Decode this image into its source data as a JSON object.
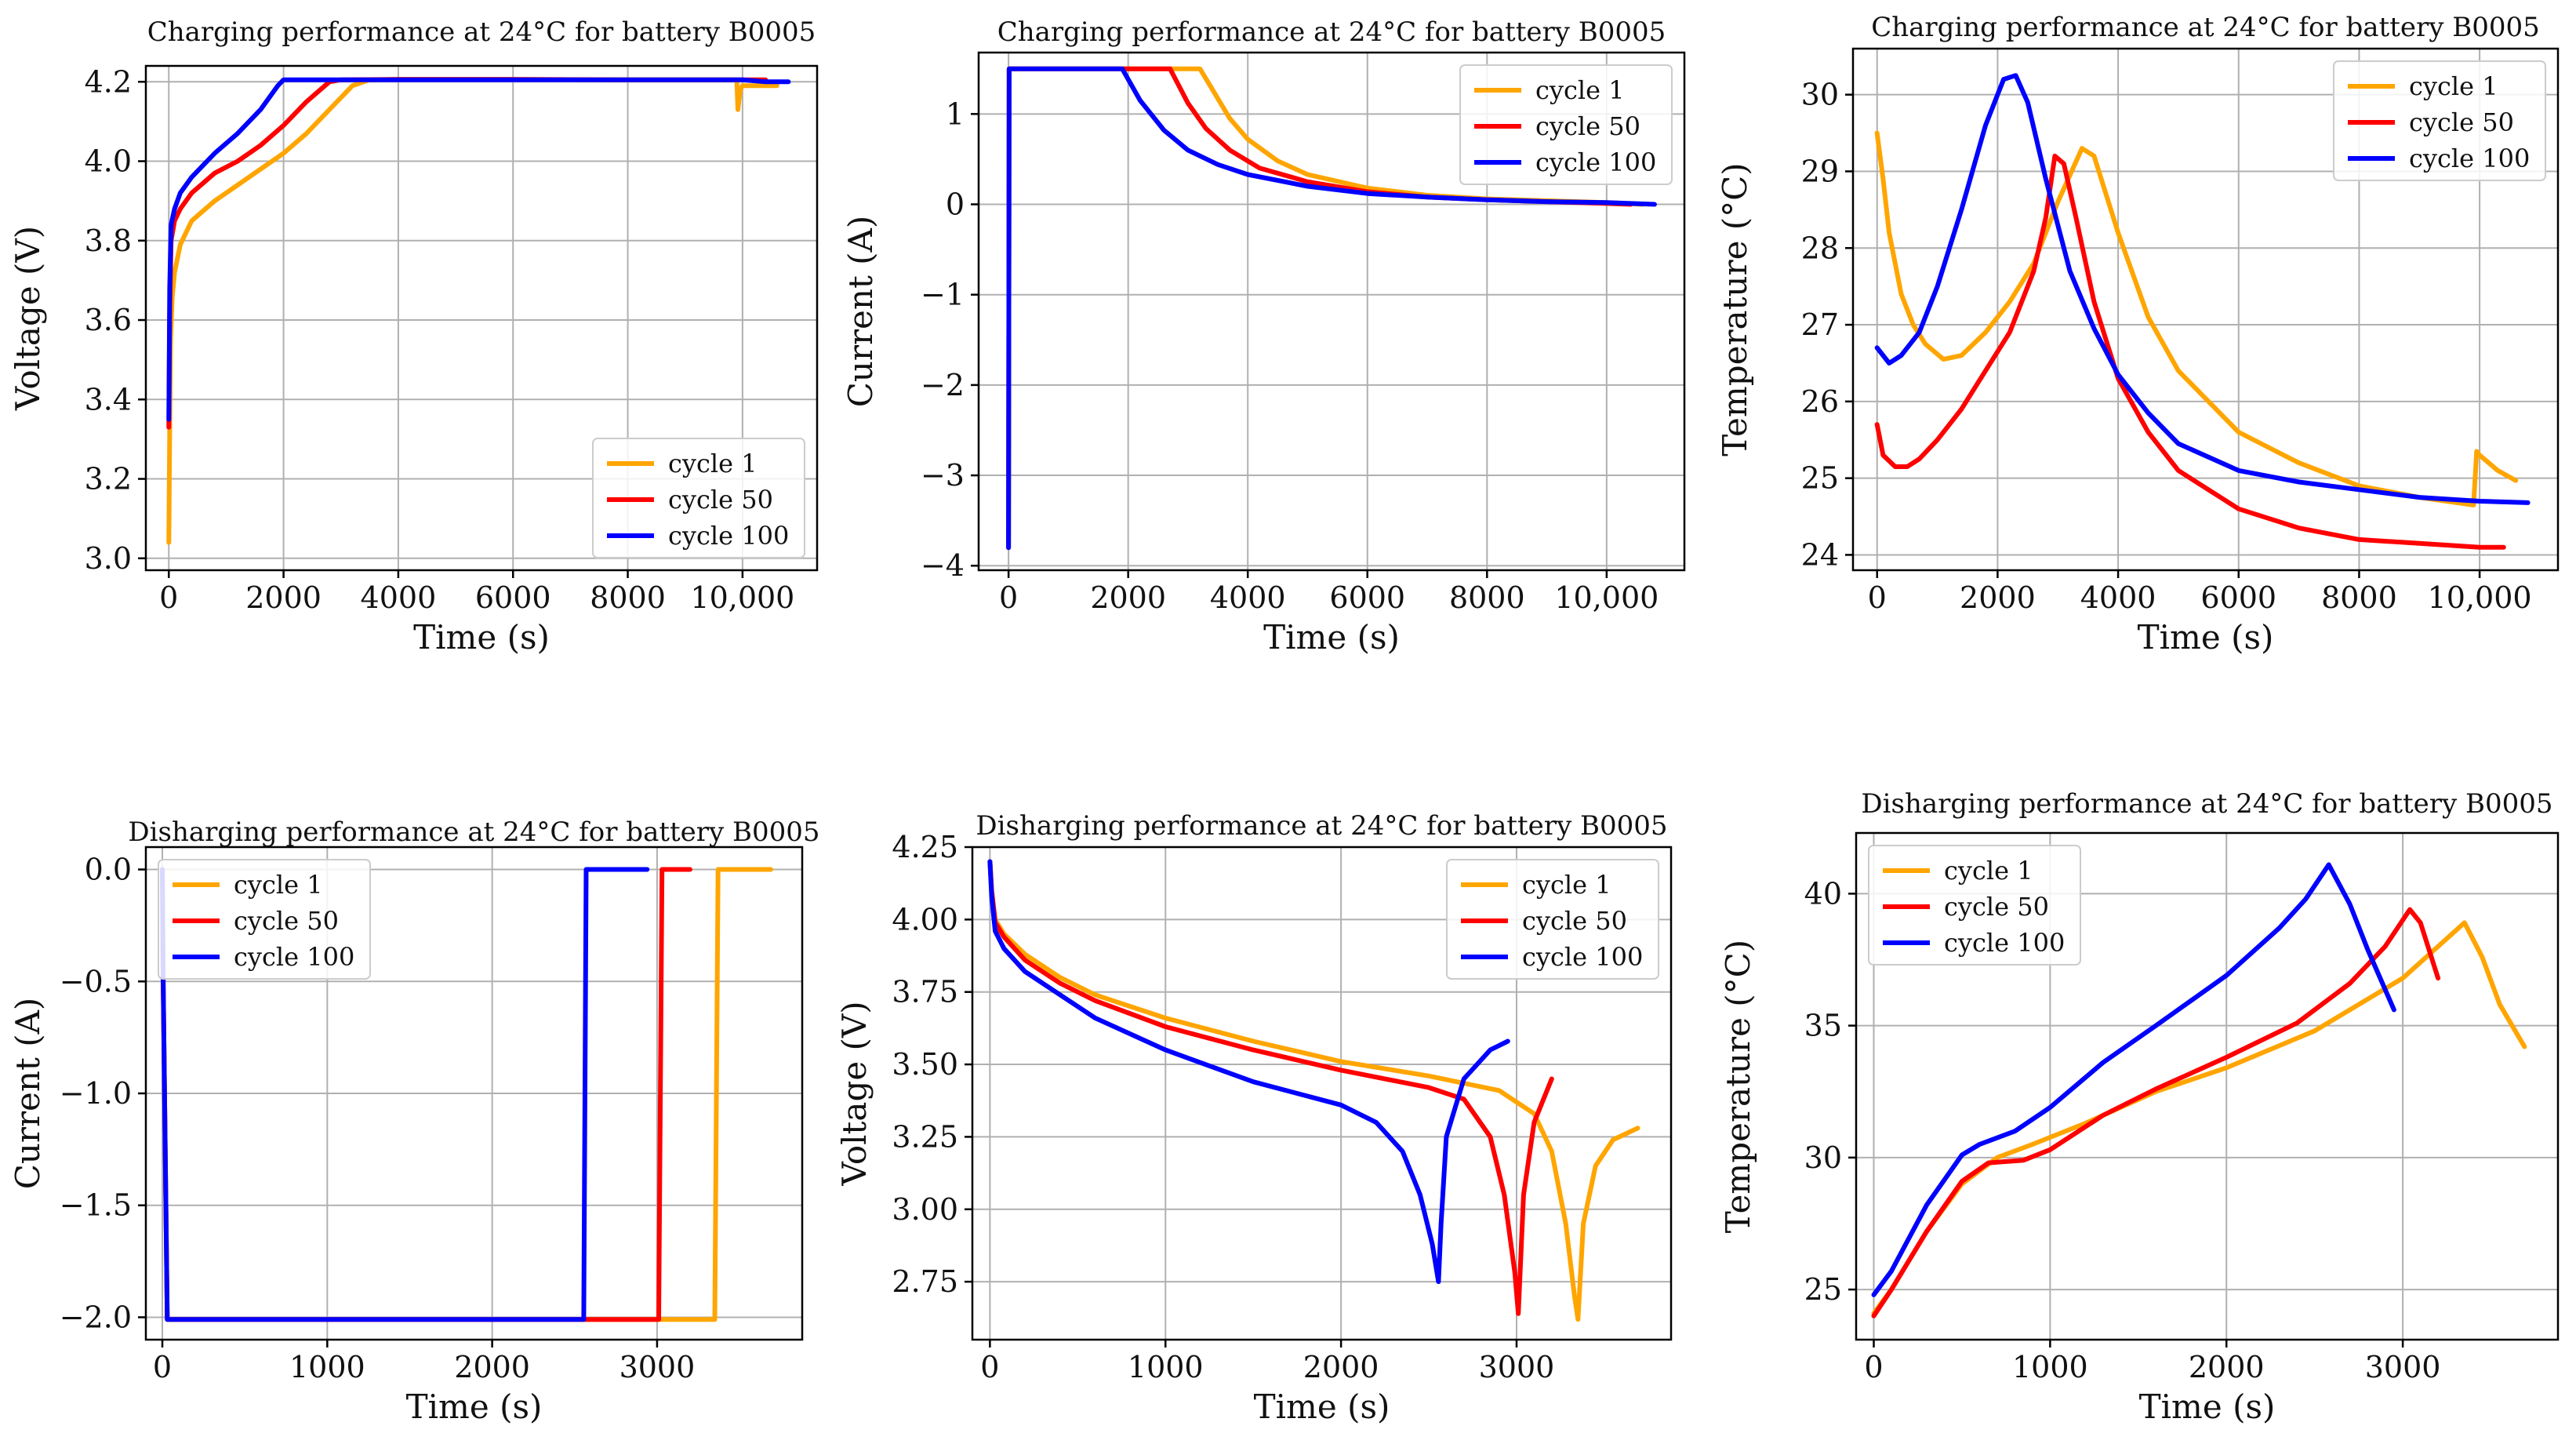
{
  "colors": {
    "cycle1": "#FFA500",
    "cycle50": "#FF0000",
    "cycle100": "#0000FF"
  },
  "chart_data": [
    {
      "type": "line",
      "title": "Charging performance at 24°C for battery B0005",
      "xlabel": "Time (s)",
      "ylabel": "Voltage (V)",
      "xlim": [
        -400,
        11300
      ],
      "ylim": [
        2.97,
        4.24
      ],
      "xticks": [
        0,
        2000,
        4000,
        6000,
        8000,
        10000
      ],
      "xtick_labels": [
        "0",
        "2000",
        "4000",
        "6000",
        "8000",
        "10,000"
      ],
      "yticks": [
        3.0,
        3.2,
        3.4,
        3.6,
        3.8,
        4.0,
        4.2
      ],
      "ytick_labels": [
        "3.0",
        "3.2",
        "3.4",
        "3.6",
        "3.8",
        "4.0",
        "4.2"
      ],
      "grid": true,
      "legend": "bottom-right",
      "series": [
        {
          "name": "cycle 1",
          "color": "#FFA500",
          "x": [
            0,
            15,
            30,
            60,
            100,
            200,
            400,
            800,
            1200,
            1600,
            2000,
            2400,
            2800,
            3200,
            3500,
            4000,
            6000,
            8000,
            9850,
            9900,
            9920,
            9960,
            10000,
            10600
          ],
          "y": [
            3.04,
            3.32,
            3.55,
            3.66,
            3.72,
            3.79,
            3.85,
            3.9,
            3.94,
            3.98,
            4.02,
            4.07,
            4.13,
            4.19,
            4.205,
            4.206,
            4.206,
            4.205,
            4.205,
            4.205,
            4.13,
            4.18,
            4.19,
            4.19
          ]
        },
        {
          "name": "cycle 50",
          "color": "#FF0000",
          "x": [
            0,
            15,
            40,
            100,
            200,
            400,
            800,
            1200,
            1600,
            2000,
            2400,
            2800,
            3000,
            4000,
            6000,
            8000,
            10000,
            10400
          ],
          "y": [
            3.33,
            3.62,
            3.8,
            3.85,
            3.88,
            3.92,
            3.97,
            4.0,
            4.04,
            4.09,
            4.15,
            4.2,
            4.205,
            4.206,
            4.206,
            4.205,
            4.205,
            4.205
          ]
        },
        {
          "name": "cycle 100",
          "color": "#0000FF",
          "x": [
            0,
            15,
            40,
            100,
            200,
            400,
            800,
            1200,
            1600,
            1900,
            2000,
            4000,
            6000,
            8000,
            10000,
            10400,
            10800
          ],
          "y": [
            3.35,
            3.68,
            3.84,
            3.88,
            3.92,
            3.96,
            4.02,
            4.07,
            4.13,
            4.19,
            4.205,
            4.205,
            4.205,
            4.205,
            4.205,
            4.2,
            4.2
          ]
        }
      ]
    },
    {
      "type": "line",
      "title": "Charging performance at 24°C for battery B0005",
      "xlabel": "Time (s)",
      "ylabel": "Current (A)",
      "xlim": [
        -500,
        11300
      ],
      "ylim": [
        -4.05,
        1.68
      ],
      "xticks": [
        0,
        2000,
        4000,
        6000,
        8000,
        10000
      ],
      "xtick_labels": [
        "0",
        "2000",
        "4000",
        "6000",
        "8000",
        "10,000"
      ],
      "yticks": [
        -4,
        -3,
        -2,
        -1,
        0,
        1
      ],
      "ytick_labels": [
        "−4",
        "−3",
        "−2",
        "−1",
        "0",
        "1"
      ],
      "grid": true,
      "legend": "top-right",
      "series": [
        {
          "name": "cycle 1",
          "color": "#FFA500",
          "x": [
            0,
            10,
            20,
            3200,
            3400,
            3700,
            4000,
            4500,
            5000,
            6000,
            7000,
            8000,
            9000,
            10000,
            10600
          ],
          "y": [
            -3.8,
            1.5,
            1.5,
            1.5,
            1.28,
            0.95,
            0.72,
            0.48,
            0.33,
            0.18,
            0.1,
            0.06,
            0.04,
            0.02,
            0.0
          ]
        },
        {
          "name": "cycle 50",
          "color": "#FF0000",
          "x": [
            0,
            10,
            20,
            2700,
            3000,
            3300,
            3700,
            4200,
            5000,
            6000,
            7000,
            8000,
            9000,
            10000,
            10400
          ],
          "y": [
            -3.8,
            1.5,
            1.5,
            1.5,
            1.12,
            0.84,
            0.6,
            0.4,
            0.25,
            0.14,
            0.08,
            0.05,
            0.03,
            0.01,
            0.0
          ]
        },
        {
          "name": "cycle 100",
          "color": "#0000FF",
          "x": [
            0,
            10,
            20,
            1900,
            2200,
            2600,
            3000,
            3500,
            4000,
            5000,
            6000,
            7000,
            8000,
            9000,
            10000,
            10800
          ],
          "y": [
            -3.8,
            1.5,
            1.5,
            1.5,
            1.15,
            0.82,
            0.6,
            0.44,
            0.33,
            0.2,
            0.12,
            0.08,
            0.05,
            0.03,
            0.02,
            0.0
          ]
        }
      ]
    },
    {
      "type": "line",
      "title": "Charging performance at 24°C for battery B0005",
      "xlabel": "Time (s)",
      "ylabel": "Temperature (°C)",
      "xlim": [
        -400,
        11300
      ],
      "ylim": [
        23.8,
        30.6
      ],
      "xticks": [
        0,
        2000,
        4000,
        6000,
        8000,
        10000
      ],
      "xtick_labels": [
        "0",
        "2000",
        "4000",
        "6000",
        "8000",
        "10,000"
      ],
      "yticks": [
        24,
        25,
        26,
        27,
        28,
        29,
        30
      ],
      "ytick_labels": [
        "24",
        "25",
        "26",
        "27",
        "28",
        "29",
        "30"
      ],
      "grid": true,
      "legend": "top-right",
      "series": [
        {
          "name": "cycle 1",
          "color": "#FFA500",
          "x": [
            0,
            100,
            200,
            400,
            600,
            800,
            1100,
            1400,
            1800,
            2200,
            2600,
            3000,
            3400,
            3600,
            4000,
            4500,
            5000,
            6000,
            7000,
            8000,
            9000,
            9900,
            9950,
            10000,
            10300,
            10600
          ],
          "y": [
            29.5,
            28.9,
            28.2,
            27.4,
            27.0,
            26.75,
            26.55,
            26.6,
            26.9,
            27.3,
            27.8,
            28.6,
            29.3,
            29.2,
            28.2,
            27.1,
            26.4,
            25.6,
            25.2,
            24.9,
            24.75,
            24.65,
            25.35,
            25.3,
            25.1,
            24.97
          ]
        },
        {
          "name": "cycle 50",
          "color": "#FF0000",
          "x": [
            0,
            100,
            300,
            500,
            700,
            1000,
            1400,
            1800,
            2200,
            2600,
            2800,
            2950,
            3100,
            3300,
            3600,
            4000,
            4500,
            5000,
            6000,
            7000,
            8000,
            9000,
            10000,
            10400
          ],
          "y": [
            25.7,
            25.3,
            25.15,
            25.15,
            25.25,
            25.5,
            25.9,
            26.4,
            26.9,
            27.7,
            28.4,
            29.2,
            29.1,
            28.4,
            27.3,
            26.3,
            25.6,
            25.1,
            24.6,
            24.35,
            24.2,
            24.15,
            24.1,
            24.1
          ]
        },
        {
          "name": "cycle 100",
          "color": "#0000FF",
          "x": [
            0,
            200,
            400,
            700,
            1000,
            1400,
            1800,
            2100,
            2300,
            2500,
            2800,
            3200,
            3600,
            4000,
            4500,
            5000,
            6000,
            7000,
            8000,
            9000,
            10000,
            10800
          ],
          "y": [
            26.7,
            26.5,
            26.6,
            26.9,
            27.5,
            28.5,
            29.6,
            30.2,
            30.25,
            29.9,
            28.9,
            27.7,
            26.95,
            26.35,
            25.85,
            25.45,
            25.1,
            24.95,
            24.85,
            24.75,
            24.7,
            24.68
          ]
        }
      ]
    },
    {
      "type": "line",
      "title": "Disharging performance at 24°C for battery B0005",
      "xlabel": "Time (s)",
      "ylabel": "Current (A)",
      "xlim": [
        -100,
        3880
      ],
      "ylim": [
        -2.1,
        0.1
      ],
      "xticks": [
        0,
        1000,
        2000,
        3000
      ],
      "xtick_labels": [
        "0",
        "1000",
        "2000",
        "3000"
      ],
      "yticks": [
        -2.0,
        -1.5,
        -1.0,
        -0.5,
        0.0
      ],
      "ytick_labels": [
        "−2.0",
        "−1.5",
        "−1.0",
        "−0.5",
        "0.0"
      ],
      "grid": true,
      "legend": "top-left",
      "series": [
        {
          "name": "cycle 1",
          "color": "#FFA500",
          "x": [
            0,
            5,
            30,
            3350,
            3370,
            3690
          ],
          "y": [
            0.0,
            -0.5,
            -2.01,
            -2.01,
            0.0,
            0.0
          ]
        },
        {
          "name": "cycle 50",
          "color": "#FF0000",
          "x": [
            0,
            5,
            30,
            3010,
            3030,
            3200
          ],
          "y": [
            0.0,
            -0.5,
            -2.01,
            -2.01,
            0.0,
            0.0
          ]
        },
        {
          "name": "cycle 100",
          "color": "#0000FF",
          "x": [
            0,
            5,
            30,
            2555,
            2570,
            2940
          ],
          "y": [
            0.0,
            -0.5,
            -2.01,
            -2.01,
            0.0,
            0.0
          ]
        }
      ]
    },
    {
      "type": "line",
      "title": "Disharging performance at 24°C for battery B0005",
      "xlabel": "Time (s)",
      "ylabel": "Voltage (V)",
      "xlim": [
        -100,
        3880
      ],
      "ylim": [
        2.55,
        4.25
      ],
      "xticks": [
        0,
        1000,
        2000,
        3000
      ],
      "xtick_labels": [
        "0",
        "1000",
        "2000",
        "3000"
      ],
      "yticks": [
        2.75,
        3.0,
        3.25,
        3.5,
        3.75,
        4.0,
        4.25
      ],
      "ytick_labels": [
        "2.75",
        "3.00",
        "3.25",
        "3.50",
        "3.75",
        "4.00",
        "4.25"
      ],
      "grid": true,
      "legend": "top-right",
      "series": [
        {
          "name": "cycle 1",
          "color": "#FFA500",
          "x": [
            0,
            10,
            30,
            80,
            200,
            400,
            600,
            1000,
            1500,
            2000,
            2500,
            2900,
            3100,
            3200,
            3280,
            3330,
            3350,
            3380,
            3450,
            3550,
            3690
          ],
          "y": [
            4.2,
            4.1,
            4.0,
            3.95,
            3.88,
            3.8,
            3.74,
            3.66,
            3.58,
            3.51,
            3.46,
            3.41,
            3.33,
            3.2,
            2.95,
            2.7,
            2.62,
            2.95,
            3.15,
            3.24,
            3.28
          ]
        },
        {
          "name": "cycle 50",
          "color": "#FF0000",
          "x": [
            0,
            10,
            30,
            80,
            200,
            400,
            600,
            1000,
            1500,
            2000,
            2500,
            2700,
            2850,
            2930,
            2990,
            3010,
            3040,
            3100,
            3200
          ],
          "y": [
            4.2,
            4.1,
            3.99,
            3.94,
            3.86,
            3.78,
            3.72,
            3.63,
            3.55,
            3.48,
            3.42,
            3.38,
            3.25,
            3.05,
            2.78,
            2.64,
            3.05,
            3.3,
            3.45
          ]
        },
        {
          "name": "cycle 100",
          "color": "#0000FF",
          "x": [
            0,
            10,
            30,
            80,
            200,
            400,
            600,
            1000,
            1500,
            2000,
            2200,
            2350,
            2450,
            2520,
            2555,
            2570,
            2600,
            2700,
            2850,
            2950
          ],
          "y": [
            4.2,
            4.08,
            3.96,
            3.9,
            3.82,
            3.74,
            3.66,
            3.55,
            3.44,
            3.36,
            3.3,
            3.2,
            3.05,
            2.88,
            2.75,
            2.95,
            3.25,
            3.45,
            3.55,
            3.58
          ]
        }
      ]
    },
    {
      "type": "line",
      "title": "Disharging performance at 24°C for battery B0005",
      "xlabel": "Time (s)",
      "ylabel": "Temperature (°C)",
      "xlim": [
        -100,
        3880
      ],
      "ylim": [
        23.1,
        42.3
      ],
      "xticks": [
        0,
        1000,
        2000,
        3000
      ],
      "xtick_labels": [
        "0",
        "1000",
        "2000",
        "3000"
      ],
      "yticks": [
        25,
        30,
        35,
        40
      ],
      "ytick_labels": [
        "25",
        "30",
        "35",
        "40"
      ],
      "grid": true,
      "legend": "top-left",
      "series": [
        {
          "name": "cycle 1",
          "color": "#FFA500",
          "x": [
            0,
            100,
            300,
            500,
            700,
            900,
            1200,
            1600,
            2000,
            2500,
            3000,
            3200,
            3350,
            3450,
            3550,
            3690
          ],
          "y": [
            24.1,
            25.0,
            27.2,
            29.0,
            30.0,
            30.5,
            31.3,
            32.5,
            33.4,
            34.8,
            36.8,
            38.0,
            38.9,
            37.6,
            35.8,
            34.2
          ]
        },
        {
          "name": "cycle 50",
          "color": "#FF0000",
          "x": [
            0,
            100,
            300,
            500,
            650,
            850,
            1000,
            1300,
            1600,
            2000,
            2400,
            2700,
            2900,
            3040,
            3100,
            3200
          ],
          "y": [
            24.0,
            25.0,
            27.2,
            29.1,
            29.8,
            29.9,
            30.3,
            31.6,
            32.6,
            33.8,
            35.1,
            36.6,
            38.0,
            39.4,
            38.9,
            36.8
          ]
        },
        {
          "name": "cycle 100",
          "color": "#0000FF",
          "x": [
            0,
            100,
            300,
            500,
            600,
            800,
            1000,
            1300,
            1600,
            2000,
            2300,
            2450,
            2580,
            2700,
            2800,
            2950
          ],
          "y": [
            24.8,
            25.7,
            28.2,
            30.1,
            30.5,
            31.0,
            31.9,
            33.6,
            35.0,
            36.9,
            38.7,
            39.8,
            41.1,
            39.6,
            37.9,
            35.6
          ]
        }
      ]
    }
  ]
}
